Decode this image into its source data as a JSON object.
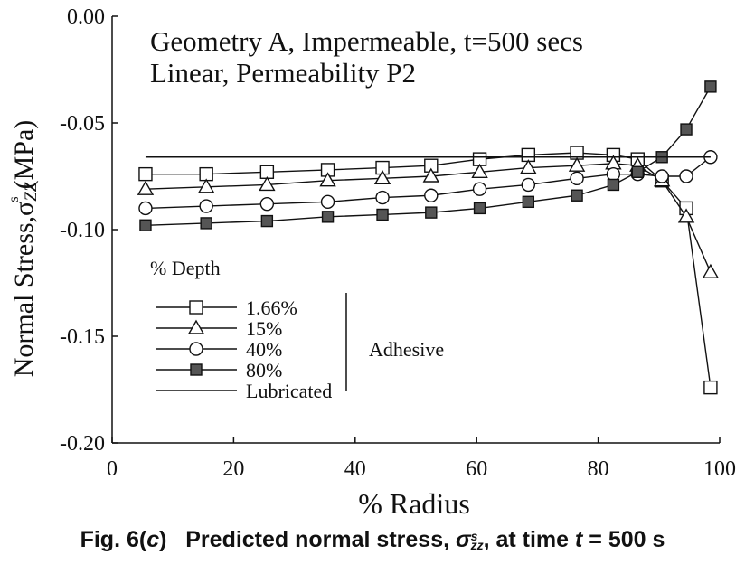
{
  "chart_data": {
    "type": "line",
    "title_lines": [
      "Geometry A, Impermeable, t=500 secs",
      "Linear, Permeability P2"
    ],
    "xlabel": "% Radius",
    "ylabel_main": "Normal Stress,",
    "ylabel_symbol": "σ",
    "ylabel_sub": "ZZ",
    "ylabel_sup": "s",
    "ylabel_unit": "(MPa)",
    "xlim": [
      0,
      100
    ],
    "ylim": [
      -0.2,
      0.0
    ],
    "xticks": [
      0,
      20,
      40,
      60,
      80,
      100
    ],
    "xtick_labels": [
      "0",
      "20",
      "40",
      "60",
      "80",
      "100"
    ],
    "yticks": [
      0.0,
      -0.05,
      -0.1,
      -0.15,
      -0.2
    ],
    "ytick_labels": [
      "0.00",
      "-0.05",
      "-0.10",
      "-0.15",
      "-0.20"
    ],
    "grid": false,
    "legend": {
      "title": "% Depth",
      "position": "bottom-left",
      "bracket_label": "Adhesive"
    },
    "series": [
      {
        "name": "1.66%",
        "marker": "open-square",
        "x": [
          5.5,
          15.5,
          25.5,
          35.5,
          44.5,
          52.5,
          60.5,
          68.5,
          76.5,
          82.5,
          86.5,
          90.5,
          94.5,
          98.5
        ],
        "y": [
          -0.074,
          -0.074,
          -0.073,
          -0.072,
          -0.071,
          -0.07,
          -0.067,
          -0.065,
          -0.064,
          -0.065,
          -0.067,
          -0.077,
          -0.09,
          -0.174
        ]
      },
      {
        "name": "15%",
        "marker": "open-triangle",
        "x": [
          5.5,
          15.5,
          25.5,
          35.5,
          44.5,
          52.5,
          60.5,
          68.5,
          76.5,
          82.5,
          86.5,
          90.5,
          94.5,
          98.5
        ],
        "y": [
          -0.081,
          -0.08,
          -0.079,
          -0.077,
          -0.076,
          -0.075,
          -0.073,
          -0.071,
          -0.07,
          -0.069,
          -0.07,
          -0.077,
          -0.094,
          -0.12
        ]
      },
      {
        "name": "40%",
        "marker": "open-circle",
        "x": [
          5.5,
          15.5,
          25.5,
          35.5,
          44.5,
          52.5,
          60.5,
          68.5,
          76.5,
          82.5,
          86.5,
          90.5,
          94.5,
          98.5
        ],
        "y": [
          -0.09,
          -0.089,
          -0.088,
          -0.087,
          -0.085,
          -0.084,
          -0.081,
          -0.079,
          -0.076,
          -0.074,
          -0.074,
          -0.075,
          -0.075,
          -0.066
        ]
      },
      {
        "name": "80%",
        "marker": "filled-square",
        "x": [
          5.5,
          15.5,
          25.5,
          35.5,
          44.5,
          52.5,
          60.5,
          68.5,
          76.5,
          82.5,
          86.5,
          90.5,
          94.5,
          98.5
        ],
        "y": [
          -0.098,
          -0.097,
          -0.096,
          -0.094,
          -0.093,
          -0.092,
          -0.09,
          -0.087,
          -0.084,
          -0.079,
          -0.073,
          -0.066,
          -0.053,
          -0.033
        ]
      },
      {
        "name": "Lubricated",
        "marker": "none",
        "x": [
          5.5,
          98.5
        ],
        "y": [
          -0.066,
          -0.066
        ]
      }
    ]
  },
  "caption": {
    "prefix": "Fig. 6(",
    "prefix_italic": "c",
    "text1": ")   Predicted normal stress, ",
    "symbol": "σ",
    "symbol_sup": "s",
    "symbol_sub": "zz",
    "text2": ", at time ",
    "t_italic": "t",
    "text3": " = 500 s"
  }
}
